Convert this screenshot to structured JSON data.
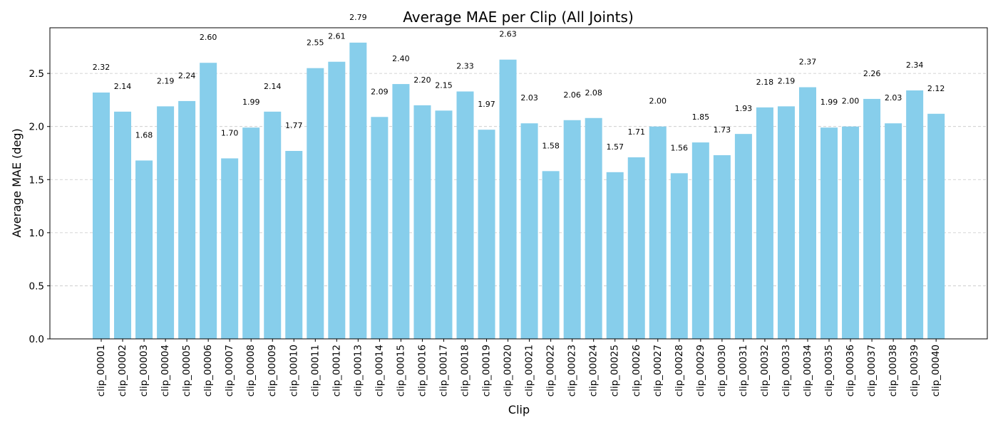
{
  "chart_data": {
    "type": "bar",
    "title": "Average MAE per Clip (All Joints)",
    "xlabel": "Clip",
    "ylabel": "Average MAE (deg)",
    "ylim": [
      0,
      2.93
    ],
    "yticks": [
      0.0,
      0.5,
      1.0,
      1.5,
      2.0,
      2.5
    ],
    "ytick_labels": [
      "0.0",
      "0.5",
      "1.0",
      "1.5",
      "2.0",
      "2.5"
    ],
    "grid": "y-axis dashed",
    "bar_color": "#87ceeb",
    "categories": [
      "clip_00001",
      "clip_00002",
      "clip_00003",
      "clip_00004",
      "clip_00005",
      "clip_00006",
      "clip_00007",
      "clip_00008",
      "clip_00009",
      "clip_00010",
      "clip_00011",
      "clip_00012",
      "clip_00013",
      "clip_00014",
      "clip_00015",
      "clip_00016",
      "clip_00017",
      "clip_00018",
      "clip_00019",
      "clip_00020",
      "clip_00021",
      "clip_00022",
      "clip_00023",
      "clip_00024",
      "clip_00025",
      "clip_00026",
      "clip_00027",
      "clip_00028",
      "clip_00029",
      "clip_00030",
      "clip_00031",
      "clip_00032",
      "clip_00033",
      "clip_00034",
      "clip_00035",
      "clip_00036",
      "clip_00037",
      "clip_00038",
      "clip_00039",
      "clip_00040"
    ],
    "values": [
      2.32,
      2.14,
      1.68,
      2.19,
      2.24,
      2.6,
      1.7,
      1.99,
      2.14,
      1.77,
      2.55,
      2.61,
      2.79,
      2.09,
      2.4,
      2.2,
      2.15,
      2.33,
      1.97,
      2.63,
      2.03,
      1.58,
      2.06,
      2.08,
      1.57,
      1.71,
      2.0,
      1.56,
      1.85,
      1.73,
      1.93,
      2.18,
      2.19,
      2.37,
      1.99,
      2.0,
      2.26,
      2.03,
      2.34,
      2.12
    ],
    "value_labels": [
      "2.32",
      "2.14",
      "1.68",
      "2.19",
      "2.24",
      "2.60",
      "1.70",
      "1.99",
      "2.14",
      "1.77",
      "2.55",
      "2.61",
      "2.79",
      "2.09",
      "2.40",
      "2.20",
      "2.15",
      "2.33",
      "1.97",
      "2.63",
      "2.03",
      "1.58",
      "2.06",
      "2.08",
      "1.57",
      "1.71",
      "2.00",
      "1.56",
      "1.85",
      "1.73",
      "1.93",
      "2.18",
      "2.19",
      "2.37",
      "1.99",
      "2.00",
      "2.26",
      "2.03",
      "2.34",
      "2.12"
    ]
  }
}
